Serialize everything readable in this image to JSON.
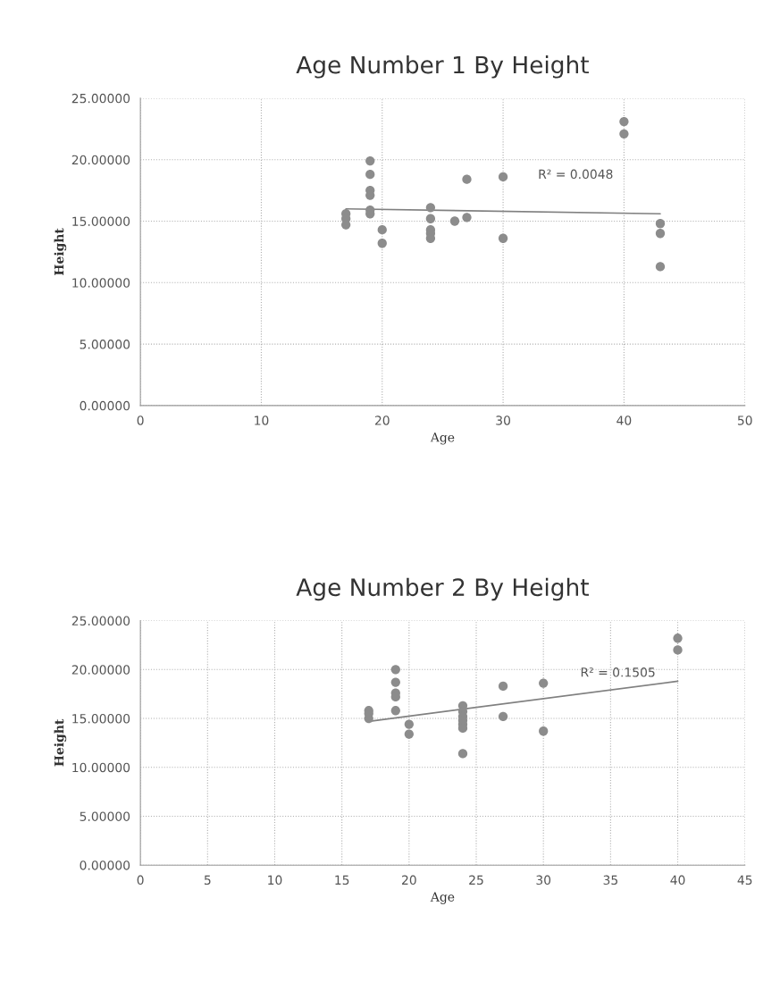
{
  "chart_data": [
    {
      "type": "scatter",
      "title": "Age Number 1 By Height",
      "xlabel": "Age",
      "ylabel": "Height",
      "series": [
        {
          "color": "#8c8c8c",
          "marker": "circle",
          "x": [
            17,
            17,
            17,
            19,
            19,
            19,
            19,
            19,
            19,
            20,
            20,
            24,
            24,
            24,
            24,
            24,
            26,
            27,
            27,
            30,
            30,
            40,
            40,
            43,
            43,
            43
          ],
          "values": [
            15.6,
            15.2,
            14.7,
            19.9,
            18.8,
            17.5,
            17.1,
            15.9,
            15.6,
            14.3,
            13.2,
            16.1,
            15.2,
            14.3,
            14.0,
            13.6,
            15.0,
            18.4,
            15.3,
            18.6,
            13.6,
            23.1,
            22.1,
            14.8,
            14.0,
            11.3
          ]
        },
        {
          "type": "line",
          "color": "#808080",
          "x": [
            17,
            43
          ],
          "values": [
            16.0,
            15.6
          ]
        }
      ],
      "xlim": [
        0,
        50
      ],
      "xticks": [
        0,
        10,
        20,
        30,
        40,
        50
      ],
      "ylim": [
        0,
        25
      ],
      "yticks": [
        {
          "value": 0,
          "label": "0.00000"
        },
        {
          "value": 5,
          "label": "5.00000"
        },
        {
          "value": 10,
          "label": "10.00000"
        },
        {
          "value": 15,
          "label": "15.00000"
        },
        {
          "value": 20,
          "label": "20.00000"
        },
        {
          "value": 25,
          "label": "25.00000"
        }
      ],
      "grid": true,
      "annotations": [
        "R² = 0.0048"
      ]
    },
    {
      "type": "scatter",
      "title": "Age Number 2 By Height",
      "xlabel": "Age",
      "ylabel": "Height",
      "series": [
        {
          "color": "#8c8c8c",
          "marker": "circle",
          "x": [
            17,
            17,
            17,
            19,
            19,
            19,
            19,
            19,
            20,
            20,
            24,
            24,
            24,
            24,
            24,
            24,
            24,
            27,
            27,
            30,
            30,
            40,
            40
          ],
          "values": [
            15.8,
            15.5,
            15.0,
            20.0,
            18.7,
            17.6,
            17.2,
            15.8,
            14.4,
            13.4,
            16.3,
            15.7,
            15.2,
            14.8,
            14.4,
            14.0,
            11.4,
            18.3,
            15.2,
            18.6,
            13.7,
            23.2,
            22.0
          ]
        },
        {
          "type": "line",
          "color": "#808080",
          "x": [
            17,
            40
          ],
          "values": [
            14.7,
            18.8
          ]
        }
      ],
      "xlim": [
        0,
        45
      ],
      "xticks": [
        0,
        5,
        10,
        15,
        20,
        25,
        30,
        35,
        40,
        45
      ],
      "ylim": [
        0,
        25
      ],
      "yticks": [
        {
          "value": 0,
          "label": "0.00000"
        },
        {
          "value": 5,
          "label": "5.00000"
        },
        {
          "value": 10,
          "label": "10.00000"
        },
        {
          "value": 15,
          "label": "15.00000"
        },
        {
          "value": 20,
          "label": "20.00000"
        },
        {
          "value": 25,
          "label": "25.00000"
        }
      ],
      "grid": true,
      "annotations": [
        "R² = 0.1505"
      ]
    }
  ]
}
